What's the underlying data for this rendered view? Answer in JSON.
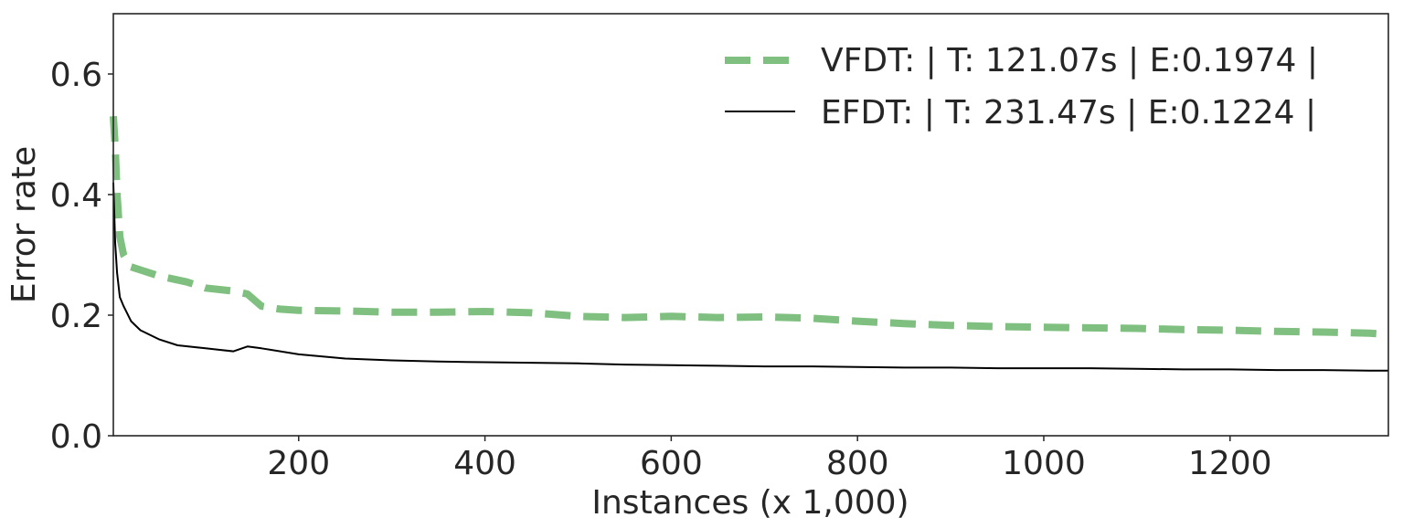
{
  "chart_data": {
    "type": "line",
    "title": "",
    "xlabel": "Instances (x 1,000)",
    "ylabel": "Error rate",
    "xlim": [
      1,
      1370
    ],
    "ylim": [
      0.0,
      0.7
    ],
    "xticks": [
      200,
      400,
      600,
      800,
      1000,
      1200
    ],
    "xtick_labels": [
      "200",
      "400",
      "600",
      "800",
      "1000",
      "1200"
    ],
    "yticks": [
      0.0,
      0.2,
      0.4,
      0.6
    ],
    "ytick_labels": [
      "0.0",
      "0.2",
      "0.4",
      "0.6"
    ],
    "grid": false,
    "legend_position": "top-right",
    "series": [
      {
        "name": "VFDT: | T: 121.07s |  E:0.1974 |",
        "color": "#7fbf7f",
        "style": "dashed",
        "x": [
          1,
          3,
          5,
          8,
          12,
          20,
          30,
          50,
          80,
          100,
          130,
          145,
          160,
          180,
          200,
          250,
          300,
          350,
          400,
          450,
          500,
          550,
          600,
          650,
          700,
          750,
          800,
          850,
          900,
          950,
          1000,
          1050,
          1100,
          1150,
          1200,
          1250,
          1300,
          1350,
          1370
        ],
        "y": [
          0.53,
          0.48,
          0.4,
          0.33,
          0.3,
          0.28,
          0.275,
          0.265,
          0.255,
          0.245,
          0.24,
          0.235,
          0.215,
          0.21,
          0.208,
          0.207,
          0.205,
          0.205,
          0.206,
          0.204,
          0.198,
          0.196,
          0.198,
          0.196,
          0.197,
          0.195,
          0.19,
          0.186,
          0.183,
          0.181,
          0.18,
          0.179,
          0.178,
          0.176,
          0.175,
          0.173,
          0.172,
          0.17,
          0.168
        ]
      },
      {
        "name": "EFDT: | T: 231.47s |  E:0.1224 |",
        "color": "#000000",
        "style": "solid",
        "x": [
          1,
          3,
          5,
          8,
          12,
          20,
          30,
          50,
          70,
          100,
          130,
          145,
          160,
          200,
          250,
          300,
          350,
          400,
          450,
          500,
          550,
          600,
          650,
          700,
          750,
          800,
          850,
          900,
          950,
          1000,
          1050,
          1100,
          1150,
          1200,
          1250,
          1300,
          1350,
          1370
        ],
        "y": [
          0.42,
          0.32,
          0.27,
          0.23,
          0.215,
          0.19,
          0.175,
          0.16,
          0.15,
          0.145,
          0.14,
          0.148,
          0.145,
          0.135,
          0.128,
          0.125,
          0.123,
          0.122,
          0.121,
          0.12,
          0.118,
          0.117,
          0.116,
          0.115,
          0.115,
          0.114,
          0.113,
          0.113,
          0.112,
          0.112,
          0.112,
          0.111,
          0.11,
          0.11,
          0.109,
          0.109,
          0.108,
          0.108
        ]
      }
    ]
  }
}
